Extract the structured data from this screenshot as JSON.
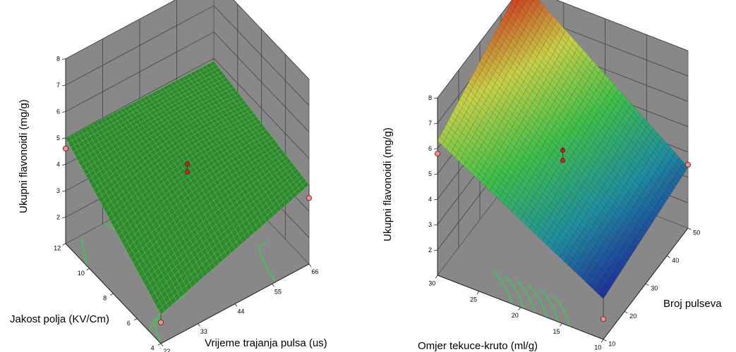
{
  "chart_data": [
    {
      "type": "surface",
      "zlabel": "Ukupni flavonoidi (mg/g)",
      "xlabel": "Vrijeme trajanja pulsa (us)",
      "ylabel": "Jakost polja (KV/Cm)",
      "x_ticks": [
        "22",
        "33",
        "44",
        "55",
        "66"
      ],
      "y_ticks": [
        "4",
        "6",
        "8",
        "10",
        "12"
      ],
      "z_ticks": [
        "2",
        "3",
        "4",
        "5",
        "6",
        "7",
        "8"
      ],
      "xlim": [
        22,
        66
      ],
      "ylim": [
        4,
        12
      ],
      "zlim": [
        1,
        8
      ],
      "surface_corners": {
        "x22_y4": 2.1,
        "x66_y4": 4.0,
        "x66_y12": 4.9,
        "x22_y12": 5.0
      },
      "design_points": [
        {
          "x": 22,
          "y": 12,
          "z": 4.6
        },
        {
          "x": 66,
          "y": 4,
          "z": 3.5
        },
        {
          "x": 22,
          "y": 4,
          "z": 1.8
        },
        {
          "x": 44,
          "y": 8,
          "z": 4.4
        },
        {
          "x": 44,
          "y": 8,
          "z": 4.1
        }
      ],
      "surface_color": "#2c8a2c",
      "contour_color": "#33d24a",
      "wall_color": "#888888",
      "point_color": "#cc2222"
    },
    {
      "type": "surface",
      "zlabel": "Ukupni flavonoidi (mg/g)",
      "xlabel": "Omjer tekuce-kruto (ml/g)",
      "ylabel": "Broj pulseva",
      "x_ticks": [
        "10",
        "15",
        "20",
        "25",
        "30"
      ],
      "y_ticks": [
        "10",
        "20",
        "30",
        "40",
        "50"
      ],
      "z_ticks": [
        "2",
        "3",
        "4",
        "5",
        "6",
        "7",
        "8"
      ],
      "xlim": [
        10,
        30
      ],
      "ylim": [
        10,
        50
      ],
      "zlim": [
        1,
        8
      ],
      "surface_corners": {
        "x30_y10": 6.3,
        "x30_y50": 8.2,
        "x10_y50": 3.4,
        "x10_y10": 2.6
      },
      "design_points": [
        {
          "x": 30,
          "y": 10,
          "z": 5.8
        },
        {
          "x": 10,
          "y": 50,
          "z": 3.5
        },
        {
          "x": 10,
          "y": 10,
          "z": 1.8
        },
        {
          "x": 20,
          "y": 30,
          "z": 5.0
        },
        {
          "x": 20,
          "y": 30,
          "z": 4.6
        }
      ],
      "colormap": [
        "#1f1f9a",
        "#1f8fa0",
        "#3fc04a",
        "#c8d048",
        "#d02a1c"
      ],
      "contour_color": "#33d24a",
      "wall_color": "#888888",
      "point_color": "#cc2222"
    }
  ]
}
